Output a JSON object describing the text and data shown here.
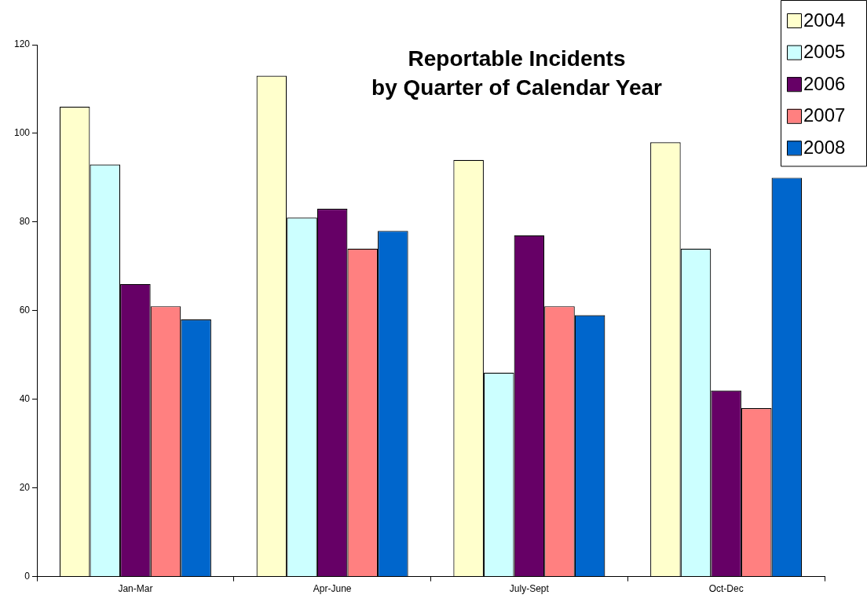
{
  "chart_data": {
    "type": "bar",
    "title": "Reportable Incidents\nby Quarter of Calendar Year",
    "categories": [
      "Jan-Mar",
      "Apr-June",
      "July-Sept",
      "Oct-Dec"
    ],
    "series": [
      {
        "name": "2004",
        "color": "#ffffcc",
        "values": [
          106,
          113,
          94,
          98
        ]
      },
      {
        "name": "2005",
        "color": "#ccffff",
        "values": [
          93,
          81,
          46,
          74
        ]
      },
      {
        "name": "2006",
        "color": "#660066",
        "values": [
          66,
          83,
          77,
          42
        ]
      },
      {
        "name": "2007",
        "color": "#ff8080",
        "values": [
          61,
          74,
          61,
          38
        ]
      },
      {
        "name": "2008",
        "color": "#0066cc",
        "values": [
          58,
          78,
          59,
          90
        ]
      }
    ],
    "ylim": [
      0,
      120
    ],
    "yticks": [
      0,
      20,
      40,
      60,
      80,
      100,
      120
    ],
    "grid": false,
    "legend": "top right"
  }
}
